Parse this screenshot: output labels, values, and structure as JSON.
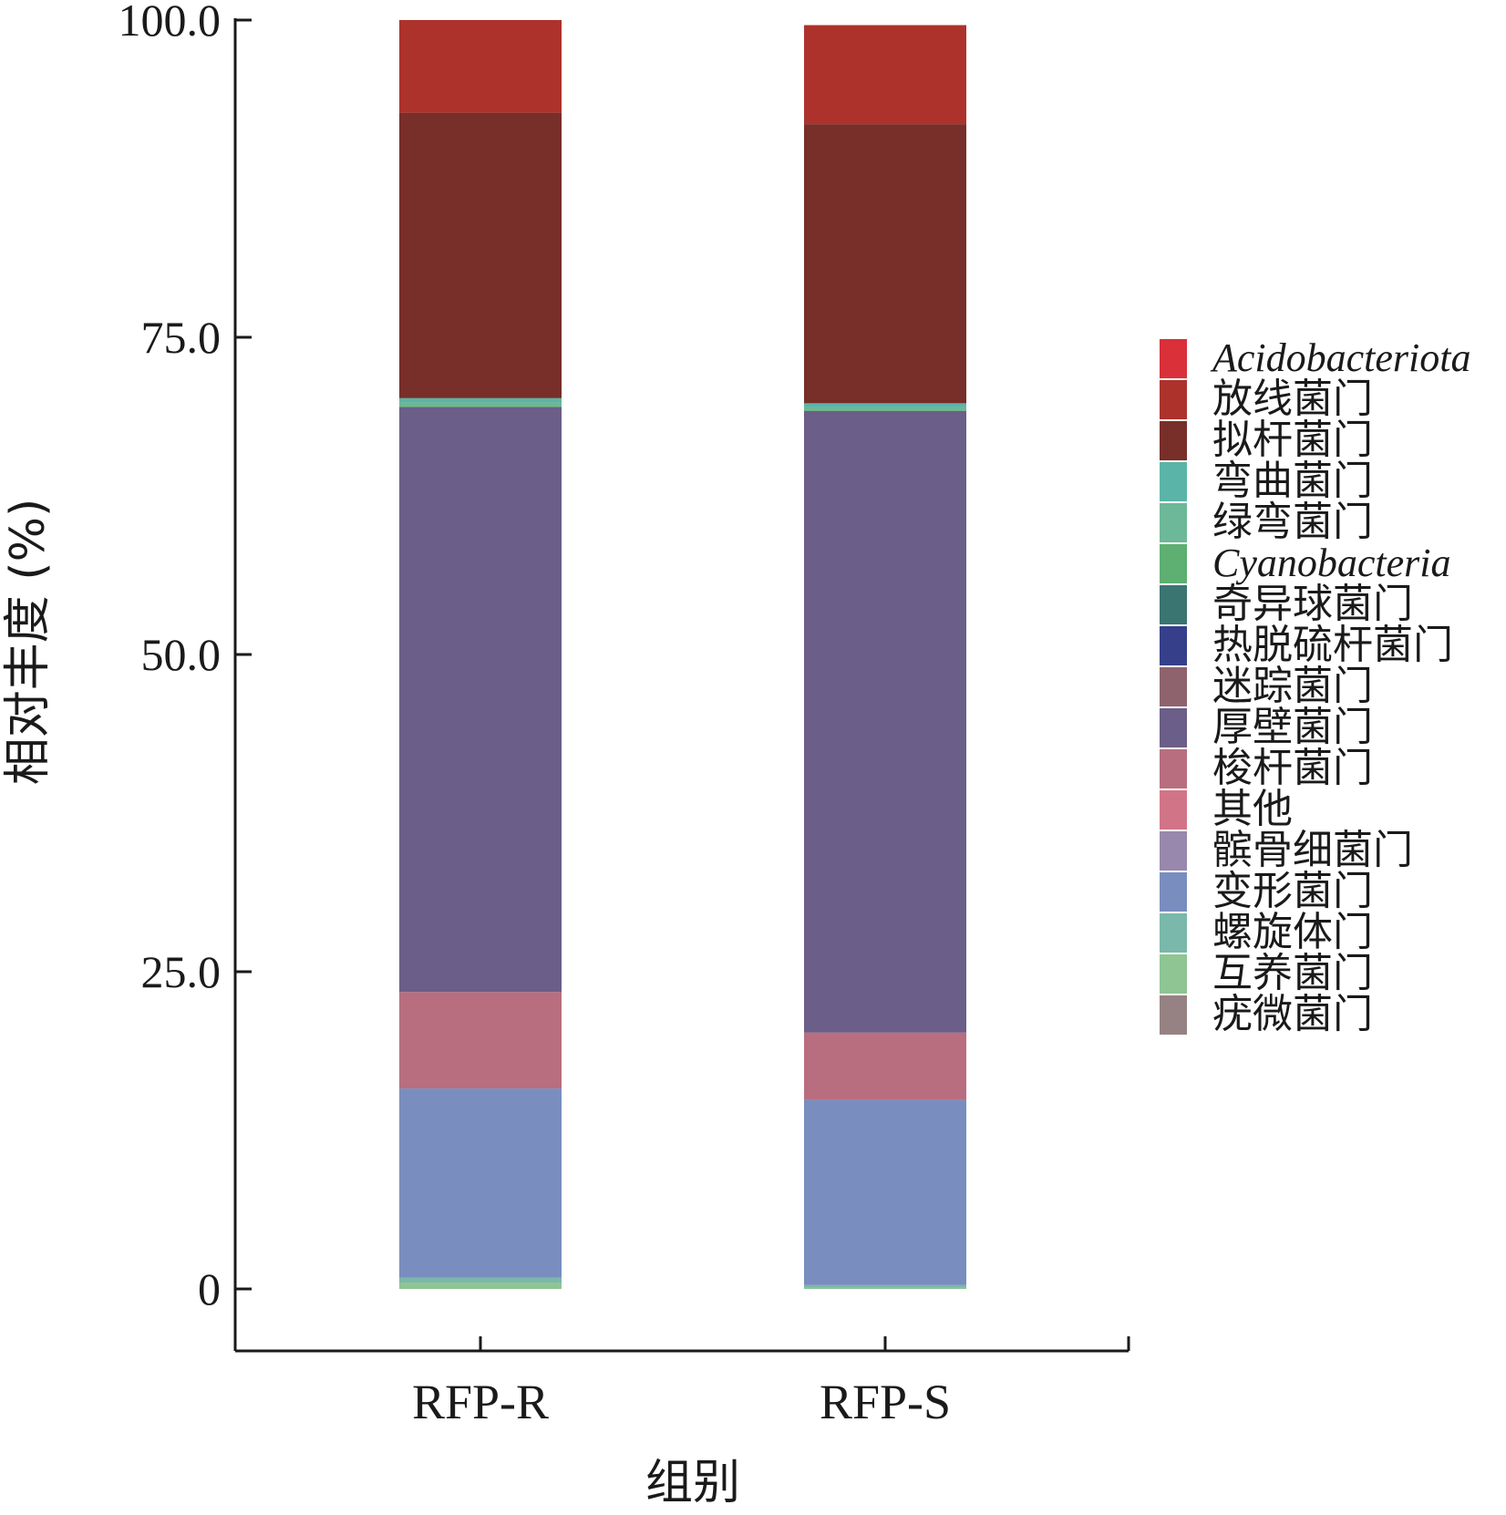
{
  "chart_data": {
    "type": "bar",
    "stacked": true,
    "title": "",
    "xlabel": "组别",
    "ylabel": "相对丰度 (%)",
    "ylim": [
      0,
      100
    ],
    "yticks": [
      0,
      25,
      50,
      75,
      100
    ],
    "ytick_labels": [
      "0",
      "25.0",
      "50.0",
      "75.0",
      "100.0"
    ],
    "categories": [
      "RFP-R",
      "RFP-S"
    ],
    "legend_position": "right",
    "series": [
      {
        "name": "Acidobacteriota",
        "italic": true,
        "color": "#d9303a",
        "values": [
          0.0,
          0.0
        ]
      },
      {
        "name": "放线菌门",
        "color": "#ad322c",
        "values": [
          7.3,
          7.8
        ]
      },
      {
        "name": "拟杆菌门",
        "color": "#782e29",
        "values": [
          22.5,
          22.0
        ]
      },
      {
        "name": "弯曲菌门",
        "color": "#5ab5a8",
        "values": [
          0.3,
          0.3
        ]
      },
      {
        "name": "绿弯菌门",
        "color": "#6cb898",
        "values": [
          0.3,
          0.2
        ]
      },
      {
        "name": "Cyanobacteria",
        "italic": true,
        "color": "#5daf72",
        "values": [
          0.1,
          0.1
        ]
      },
      {
        "name": "奇异球菌门",
        "color": "#3a7572",
        "values": [
          0.0,
          0.0
        ]
      },
      {
        "name": "热脱硫杆菌门",
        "color": "#363f8a",
        "values": [
          0.0,
          0.0
        ]
      },
      {
        "name": "迷踪菌门",
        "color": "#8e636e",
        "values": [
          0.0,
          0.0
        ]
      },
      {
        "name": "厚壁菌门",
        "color": "#6b5e88",
        "values": [
          46.1,
          49.0
        ]
      },
      {
        "name": "梭杆菌门",
        "color": "#b86e7e",
        "values": [
          7.6,
          5.3
        ]
      },
      {
        "name": "其他",
        "color": "#d27488",
        "values": [
          0.0,
          0.0
        ]
      },
      {
        "name": "髌骨细菌门",
        "color": "#9888ad",
        "values": [
          0.0,
          0.0
        ]
      },
      {
        "name": "变形菌门",
        "color": "#798ebf",
        "values": [
          14.9,
          14.6
        ]
      },
      {
        "name": "螺旋体门",
        "color": "#79b8aa",
        "values": [
          0.4,
          0.2
        ]
      },
      {
        "name": "互养菌门",
        "color": "#8ec592",
        "values": [
          0.5,
          0.1
        ]
      },
      {
        "name": "疣微菌门",
        "color": "#968282",
        "values": [
          0.0,
          0.0
        ]
      }
    ]
  }
}
